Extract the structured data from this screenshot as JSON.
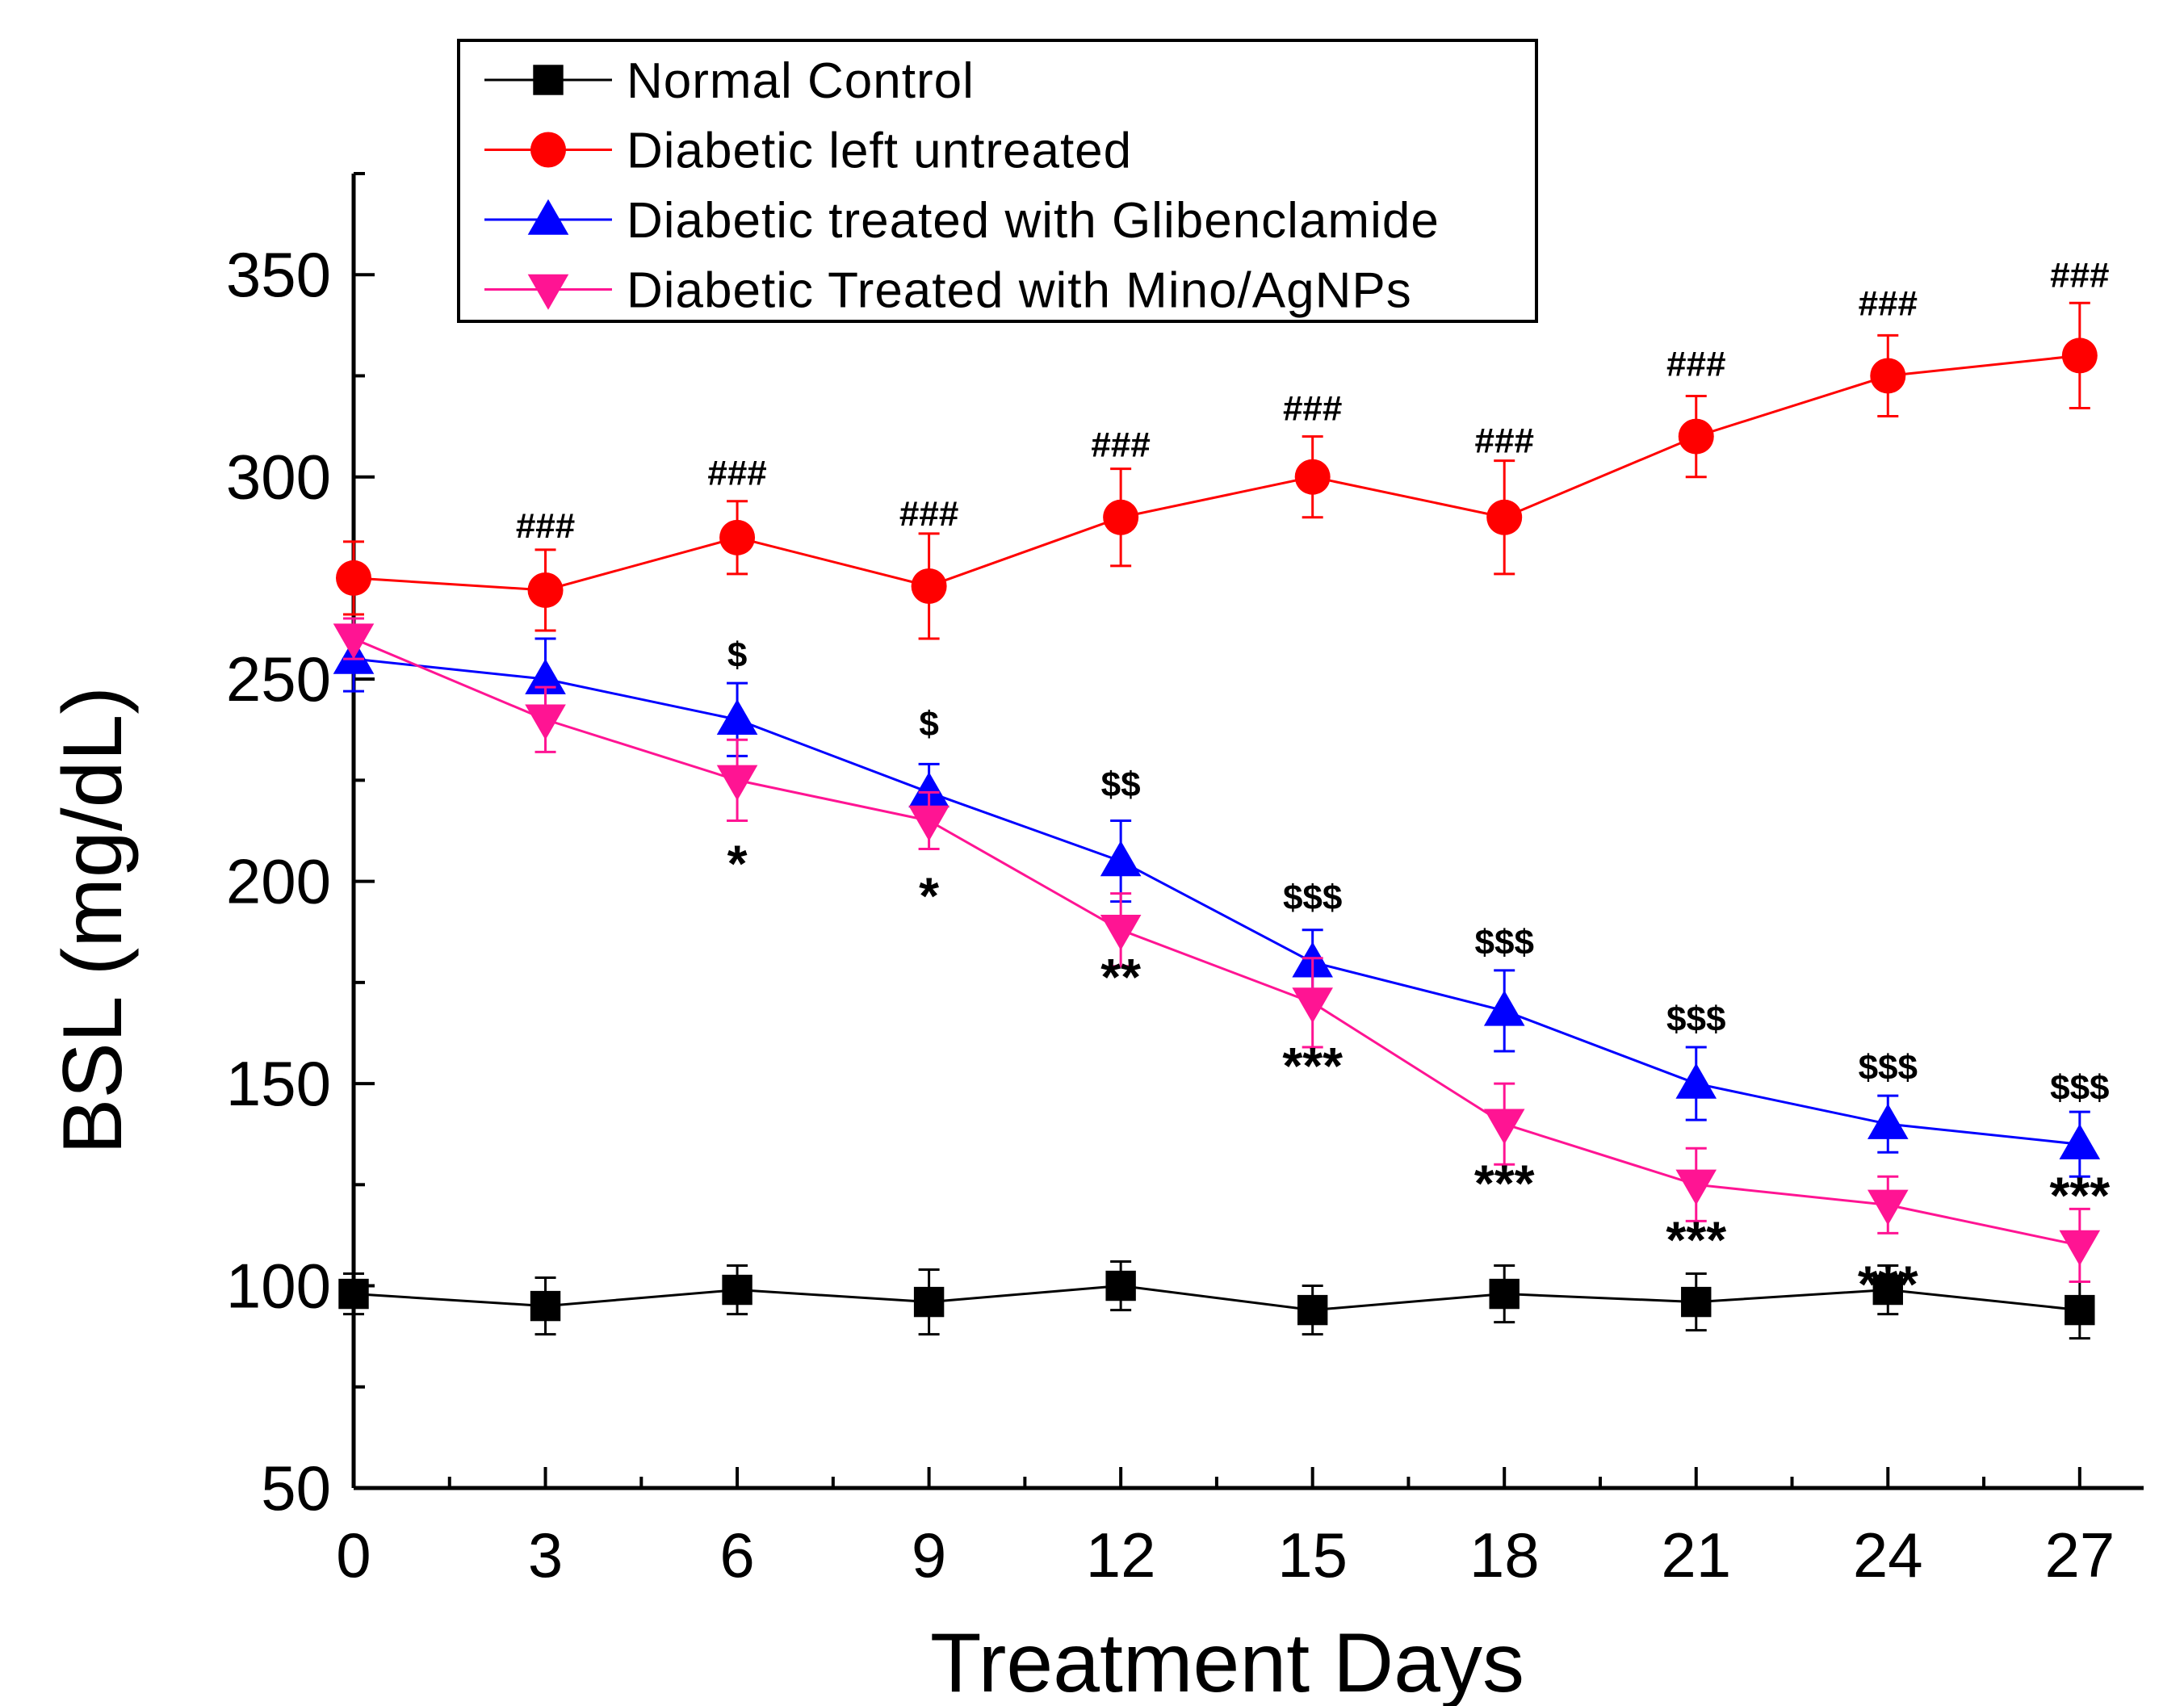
{
  "chart_data": {
    "type": "line",
    "title": "",
    "xlabel": "Treatment Days",
    "ylabel": "BSL (mg/dL)",
    "xlim": [
      0,
      28
    ],
    "ylim": [
      50,
      375
    ],
    "xticks": [
      0,
      3,
      6,
      9,
      12,
      15,
      18,
      21,
      24,
      27
    ],
    "yticks": [
      50,
      100,
      150,
      200,
      250,
      300,
      350
    ],
    "x": [
      0,
      3,
      6,
      9,
      12,
      15,
      18,
      21,
      24,
      27
    ],
    "series": [
      {
        "name": "Normal Control",
        "color": "#000000",
        "marker": "square",
        "values": [
          98,
          95,
          99,
          96,
          100,
          94,
          98,
          96,
          99,
          94
        ],
        "errors": [
          5,
          7,
          6,
          8,
          6,
          6,
          7,
          7,
          6,
          7
        ]
      },
      {
        "name": "Diabetic left untreated",
        "color": "#ff0000",
        "marker": "circle",
        "values": [
          275,
          272,
          285,
          273,
          290,
          300,
          290,
          310,
          325,
          330
        ],
        "errors": [
          9,
          10,
          9,
          13,
          12,
          10,
          14,
          10,
          10,
          13
        ]
      },
      {
        "name": "Diabetic treated with Glibenclamide",
        "color": "#0000ff",
        "marker": "triangle-up",
        "values": [
          255,
          250,
          240,
          222,
          205,
          180,
          168,
          150,
          140,
          135
        ],
        "errors": [
          8,
          10,
          9,
          7,
          10,
          8,
          10,
          9,
          7,
          8
        ]
      },
      {
        "name": "Diabetic Treated with Mino/AgNPs",
        "color": "#ff1493",
        "marker": "triangle-down",
        "values": [
          260,
          240,
          225,
          215,
          188,
          170,
          140,
          125,
          120,
          110
        ],
        "errors": [
          5,
          8,
          10,
          7,
          9,
          11,
          10,
          9,
          7,
          9
        ]
      }
    ],
    "annotations": [
      {
        "text": "###",
        "x": 3,
        "y": 285,
        "size": 44
      },
      {
        "text": "###",
        "x": 6,
        "y": 298,
        "size": 44
      },
      {
        "text": "###",
        "x": 9,
        "y": 288,
        "size": 44
      },
      {
        "text": "###",
        "x": 12,
        "y": 305,
        "size": 44
      },
      {
        "text": "###",
        "x": 15,
        "y": 314,
        "size": 44
      },
      {
        "text": "###",
        "x": 18,
        "y": 306,
        "size": 44
      },
      {
        "text": "###",
        "x": 21,
        "y": 325,
        "size": 44
      },
      {
        "text": "###",
        "x": 24,
        "y": 340,
        "size": 44
      },
      {
        "text": "###",
        "x": 27,
        "y": 347,
        "size": 44
      },
      {
        "text": "$",
        "x": 6,
        "y": 253,
        "size": 44
      },
      {
        "text": "$",
        "x": 9,
        "y": 236,
        "size": 44
      },
      {
        "text": "$$",
        "x": 12,
        "y": 221,
        "size": 44
      },
      {
        "text": "$$$",
        "x": 15,
        "y": 193,
        "size": 44
      },
      {
        "text": "$$$",
        "x": 18,
        "y": 182,
        "size": 44
      },
      {
        "text": "$$$",
        "x": 21,
        "y": 163,
        "size": 44
      },
      {
        "text": "$$$",
        "x": 24,
        "y": 151,
        "size": 44
      },
      {
        "text": "$$$",
        "x": 27,
        "y": 146,
        "size": 44
      },
      {
        "text": "*",
        "x": 6,
        "y": 200,
        "size": 64
      },
      {
        "text": "*",
        "x": 9,
        "y": 192,
        "size": 64
      },
      {
        "text": "**",
        "x": 12,
        "y": 172,
        "size": 64
      },
      {
        "text": "***",
        "x": 15,
        "y": 150,
        "size": 64
      },
      {
        "text": "***",
        "x": 18,
        "y": 121,
        "size": 64
      },
      {
        "text": "***",
        "x": 21,
        "y": 107,
        "size": 64
      },
      {
        "text": "***",
        "x": 24,
        "y": 96,
        "size": 64
      },
      {
        "text": "***",
        "x": 27,
        "y": 118,
        "size": 64
      }
    ]
  }
}
